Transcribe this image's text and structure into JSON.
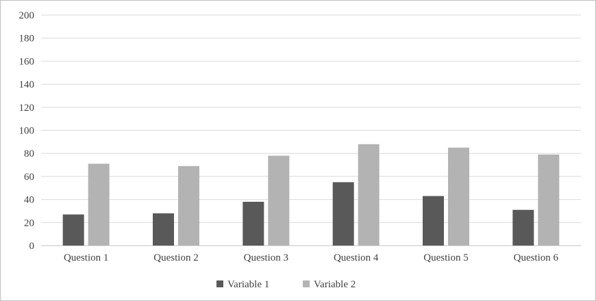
{
  "chart_data": {
    "type": "bar",
    "categories": [
      "Question 1",
      "Question 2",
      "Question 3",
      "Question 4",
      "Question 5",
      "Question 6"
    ],
    "series": [
      {
        "name": "Variable 1",
        "values": [
          27,
          28,
          38,
          55,
          43,
          31
        ],
        "color": "#595959"
      },
      {
        "name": "Variable 2",
        "values": [
          71,
          69,
          78,
          88,
          85,
          79
        ],
        "color": "#b3b3b3"
      }
    ],
    "ylim": [
      0,
      200
    ],
    "yticks": [
      0,
      20,
      40,
      60,
      80,
      100,
      120,
      140,
      160,
      180,
      200
    ],
    "grid": true,
    "legend_position": "bottom",
    "colors": {
      "grid": "#d9d9d9",
      "axis": "#bfbfbf",
      "text": "#404040"
    }
  }
}
